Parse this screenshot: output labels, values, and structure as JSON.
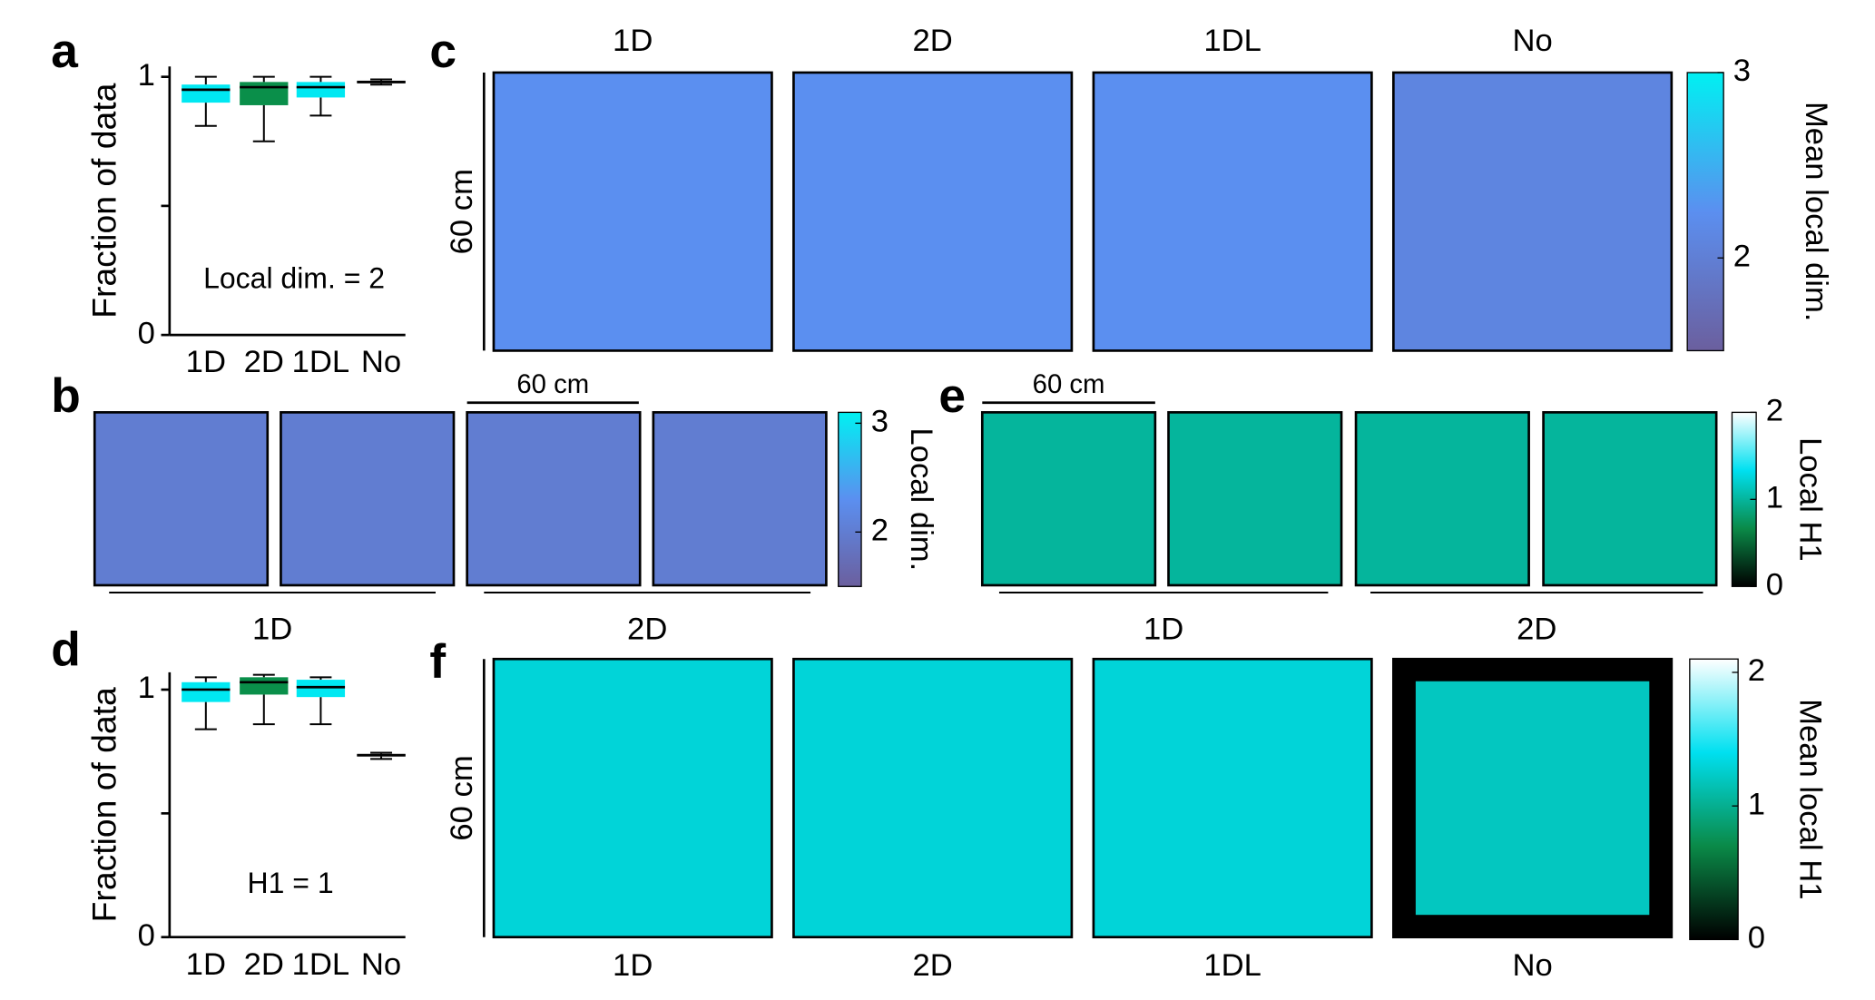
{
  "chart_data": [
    {
      "type": "box",
      "label": "a",
      "ylabel": "Fraction of data",
      "annotation": "Local dim. = 2",
      "categories": [
        "1D",
        "2D",
        "1DL",
        "No"
      ],
      "boxes": [
        {
          "low": 0.81,
          "q1": 0.9,
          "median": 0.95,
          "q3": 0.97,
          "high": 1.0,
          "color": "#00e8f2"
        },
        {
          "low": 0.75,
          "q1": 0.89,
          "median": 0.96,
          "q3": 0.98,
          "high": 1.0,
          "color": "#0a8f4a"
        },
        {
          "low": 0.85,
          "q1": 0.92,
          "median": 0.96,
          "q3": 0.98,
          "high": 1.0,
          "color": "#00e8f2"
        },
        {
          "low": 0.97,
          "q1": 0.975,
          "median": 0.98,
          "q3": 0.985,
          "high": 0.99,
          "color": "#000000"
        }
      ],
      "ylim": [
        0,
        1.04
      ],
      "yticks": [
        0,
        1
      ],
      "minor_yticks": [
        0.5
      ]
    },
    {
      "type": "heatmap",
      "label": "c",
      "titles": [
        "1D",
        "2D",
        "1DL",
        "No"
      ],
      "scale_label": "60 cm",
      "colorbar_label": "Mean local dim.",
      "clim": [
        1.5,
        3
      ],
      "cticks": [
        2,
        3
      ],
      "colormap": [
        "#6b5f9e",
        "#5b8ff0",
        "#00f0f2"
      ],
      "maps": [
        {
          "value": 2.25
        },
        {
          "value": 2.25
        },
        {
          "value": 2.25
        },
        {
          "value": 2.1
        }
      ]
    },
    {
      "type": "heatmap",
      "label": "b",
      "scale_label": "60 cm",
      "colorbar_label": "Local dim.",
      "group_labels": [
        "1D",
        "2D"
      ],
      "clim": [
        1.5,
        3.1
      ],
      "cticks": [
        2,
        3
      ],
      "colormap": [
        "#6b5f9e",
        "#5b8ff0",
        "#00f0f2"
      ],
      "maps": [
        {
          "value": 2
        },
        {
          "value": 2
        },
        {
          "value": 2
        },
        {
          "value": 2
        }
      ]
    },
    {
      "type": "heatmap",
      "label": "e",
      "scale_label": "60 cm",
      "colorbar_label": "Local H1",
      "group_labels": [
        "1D",
        "2D"
      ],
      "clim": [
        0,
        2
      ],
      "cticks": [
        0,
        1,
        2
      ],
      "colormap": [
        "#000000",
        "#0a8a48",
        "#00e0f0",
        "#ffffff"
      ],
      "maps": [
        {
          "value": 1
        },
        {
          "value": 1
        },
        {
          "value": 1
        },
        {
          "value": 1
        }
      ]
    },
    {
      "type": "box",
      "label": "d",
      "ylabel": "Fraction of data",
      "annotation": "H1 = 1",
      "categories": [
        "1D",
        "2D",
        "1DL",
        "No"
      ],
      "boxes": [
        {
          "low": 0.84,
          "q1": 0.95,
          "median": 1.0,
          "q3": 1.03,
          "high": 1.05,
          "color": "#00e8f2"
        },
        {
          "low": 0.86,
          "q1": 0.98,
          "median": 1.03,
          "q3": 1.05,
          "high": 1.06,
          "color": "#0a8f4a"
        },
        {
          "low": 0.86,
          "q1": 0.97,
          "median": 1.01,
          "q3": 1.04,
          "high": 1.05,
          "color": "#00e8f2"
        },
        {
          "low": 0.72,
          "q1": 0.73,
          "median": 0.735,
          "q3": 0.74,
          "high": 0.745,
          "color": "#000000"
        }
      ],
      "ylim": [
        0,
        1.07
      ],
      "yticks": [
        0,
        1
      ],
      "minor_yticks": [
        0.5
      ]
    },
    {
      "type": "heatmap",
      "label": "f",
      "titles": [
        "1D",
        "2D",
        "1DL",
        "No"
      ],
      "scale_label": "60 cm",
      "colorbar_label": "Mean local H1",
      "clim": [
        0,
        2.1
      ],
      "cticks": [
        0,
        1,
        2
      ],
      "colormap": [
        "#000000",
        "#0a8a48",
        "#00e0f0",
        "#ffffff"
      ],
      "maps": [
        {
          "value": 1.3
        },
        {
          "value": 1.3
        },
        {
          "value": 1.3
        },
        {
          "value": 1.2,
          "border_value": 0
        }
      ]
    }
  ]
}
